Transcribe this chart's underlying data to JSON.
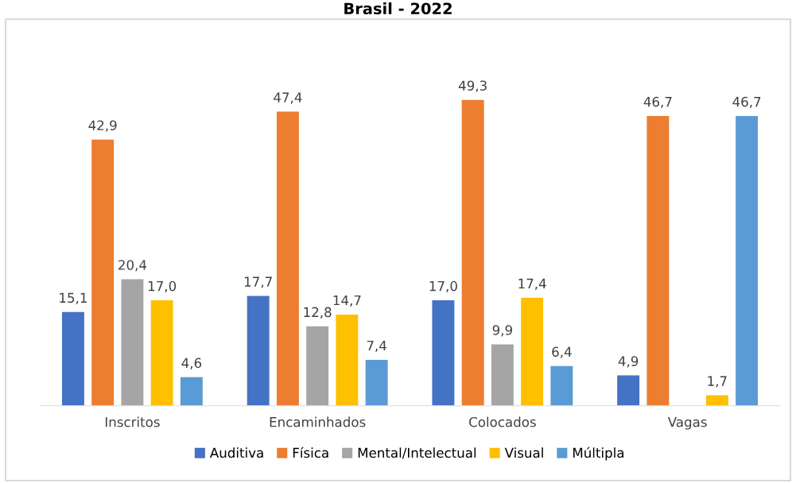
{
  "chart_data": {
    "type": "bar",
    "title": "Brasil - 2022",
    "categories": [
      "Inscritos",
      "Encaminhados",
      "Colocados",
      "Vagas"
    ],
    "series": [
      {
        "name": "Auditiva",
        "color": "#4472c4",
        "values": [
          15.1,
          17.7,
          17.0,
          4.9
        ],
        "value_labels": [
          "15,1",
          "17,7",
          "17,0",
          "4,9"
        ]
      },
      {
        "name": "Física",
        "color": "#ed7d31",
        "values": [
          42.9,
          47.4,
          49.3,
          46.7
        ],
        "value_labels": [
          "42,9",
          "47,4",
          "49,3",
          "46,7"
        ]
      },
      {
        "name": "Mental/Intelectual",
        "color": "#a5a5a5",
        "values": [
          20.4,
          12.8,
          9.9,
          null
        ],
        "value_labels": [
          "20,4",
          "12,8",
          "9,9",
          null
        ]
      },
      {
        "name": "Visual",
        "color": "#ffc000",
        "values": [
          17.0,
          14.7,
          17.4,
          1.7
        ],
        "value_labels": [
          "17,0",
          "14,7",
          "17,4",
          "1,7"
        ]
      },
      {
        "name": "Múltipla",
        "color": "#5b9bd5",
        "values": [
          4.6,
          7.4,
          6.4,
          46.7
        ],
        "value_labels": [
          "4,6",
          "7,4",
          "6,4",
          "46,7"
        ]
      }
    ],
    "legend": "bottom",
    "grid": false
  }
}
